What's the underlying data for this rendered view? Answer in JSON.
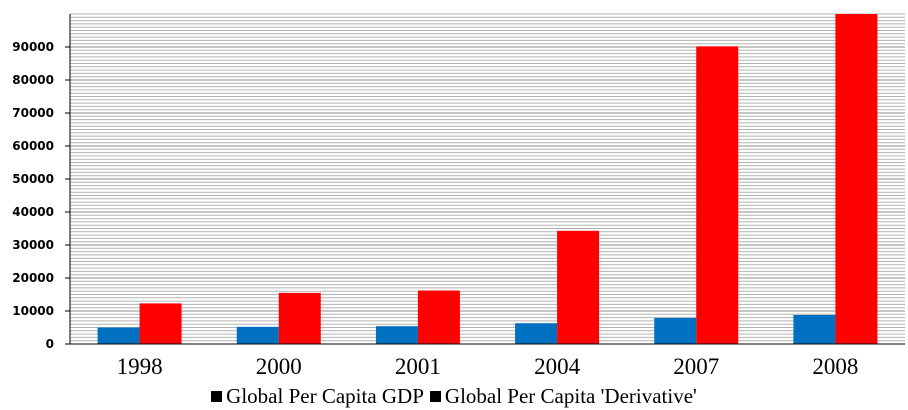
{
  "chart_data": {
    "type": "bar",
    "title": "",
    "xlabel": "",
    "ylabel": "",
    "categories": [
      "1998",
      "2000",
      "2001",
      "2004",
      "2007",
      "2008"
    ],
    "series": [
      {
        "name": "Global Per Capita GDP",
        "color": "#0070c0",
        "values": [
          5000,
          5200,
          5400,
          6300,
          7900,
          8800
        ]
      },
      {
        "name": "Global Per Capita 'Derivative'",
        "color": "#ff0000",
        "values": [
          12300,
          15500,
          16200,
          34300,
          90200,
          100000
        ]
      }
    ],
    "ylim": [
      0,
      100000
    ],
    "yticks": [
      0,
      10000,
      20000,
      30000,
      40000,
      50000,
      60000,
      70000,
      80000,
      90000
    ],
    "grid": true,
    "legend": "bottom"
  }
}
